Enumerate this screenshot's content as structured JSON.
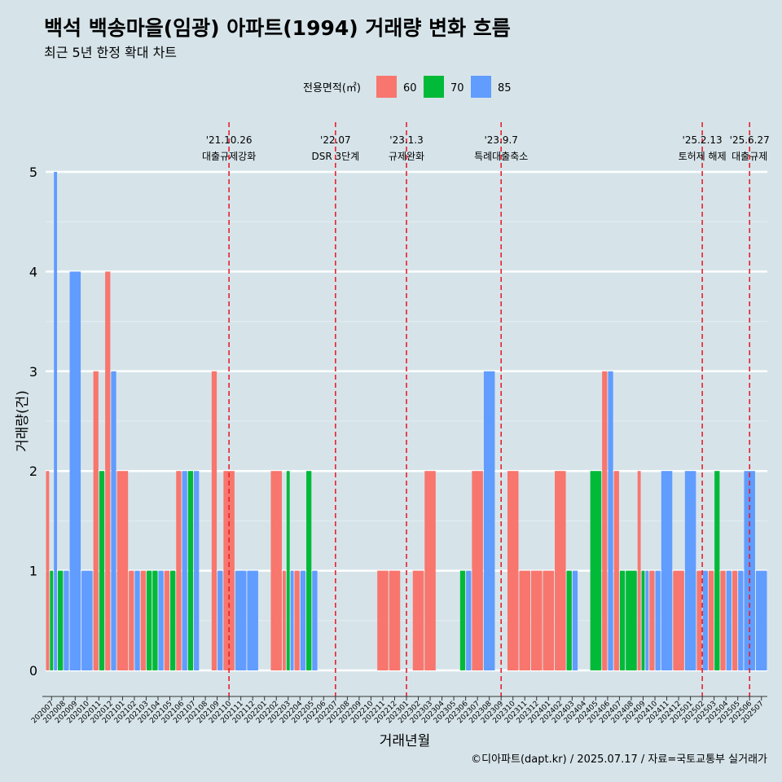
{
  "chart_data": {
    "type": "bar",
    "title": "백석 백송마을(임광) 아파트(1994) 거래량 변화 흐름",
    "subtitle": "최근 5년 한정 확대 차트",
    "xlabel": "거래년월",
    "ylabel": "거래량(건)",
    "ylim": [
      0,
      5
    ],
    "yticks": [
      0,
      1,
      2,
      3,
      4,
      5
    ],
    "grid": true,
    "legend": {
      "title": "전용면적(㎡)",
      "position": "top"
    },
    "categories": [
      "202007",
      "202008",
      "202009",
      "202010",
      "202011",
      "202012",
      "202101",
      "202102",
      "202103",
      "202104",
      "202105",
      "202106",
      "202107",
      "202108",
      "202109",
      "202110",
      "202111",
      "202112",
      "202201",
      "202202",
      "202203",
      "202204",
      "202205",
      "202206",
      "202207",
      "202208",
      "202209",
      "202210",
      "202211",
      "202212",
      "202301",
      "202302",
      "202303",
      "202304",
      "202305",
      "202306",
      "202307",
      "202308",
      "202309",
      "202310",
      "202311",
      "202312",
      "202401",
      "202402",
      "202403",
      "202404",
      "202405",
      "202406",
      "202407",
      "202408",
      "202409",
      "202410",
      "202411",
      "202412",
      "202501",
      "202502",
      "202503",
      "202504",
      "202505",
      "202506",
      "202507"
    ],
    "series": [
      {
        "name": "60",
        "color": "#F8766D",
        "values": [
          2,
          0,
          0,
          0,
          3,
          4,
          2,
          1,
          1,
          0,
          1,
          2,
          0,
          0,
          3,
          2,
          0,
          0,
          0,
          2,
          1,
          1,
          0,
          0,
          0,
          0,
          0,
          0,
          1,
          1,
          0,
          1,
          2,
          0,
          0,
          0,
          2,
          0,
          0,
          2,
          1,
          1,
          1,
          2,
          0,
          0,
          0,
          3,
          2,
          0,
          2,
          1,
          0,
          1,
          0,
          1,
          1,
          1,
          1,
          0,
          0
        ]
      },
      {
        "name": "70",
        "color": "#00BA38",
        "values": [
          1,
          1,
          0,
          0,
          2,
          0,
          0,
          0,
          1,
          1,
          1,
          0,
          2,
          0,
          0,
          0,
          0,
          0,
          0,
          0,
          2,
          0,
          2,
          0,
          0,
          0,
          0,
          0,
          0,
          0,
          0,
          0,
          0,
          0,
          0,
          1,
          0,
          0,
          0,
          0,
          0,
          0,
          0,
          0,
          1,
          0,
          2,
          0,
          1,
          1,
          1,
          0,
          0,
          0,
          0,
          0,
          2,
          0,
          0,
          0,
          0
        ]
      },
      {
        "name": "85",
        "color": "#619CFF",
        "values": [
          5,
          1,
          4,
          1,
          0,
          3,
          0,
          1,
          0,
          1,
          0,
          2,
          2,
          0,
          1,
          0,
          1,
          1,
          0,
          0,
          1,
          1,
          1,
          0,
          0,
          0,
          0,
          0,
          0,
          0,
          0,
          0,
          0,
          0,
          0,
          1,
          0,
          3,
          0,
          0,
          0,
          0,
          0,
          0,
          1,
          0,
          0,
          3,
          0,
          0,
          1,
          1,
          2,
          0,
          2,
          1,
          0,
          1,
          1,
          2,
          1
        ]
      }
    ],
    "events": [
      {
        "date": "'21.10.26",
        "label": "대출규제강화",
        "month": "202110"
      },
      {
        "date": "'22.07",
        "label": "DSR 3단계",
        "month": "202207"
      },
      {
        "date": "'23.1.3",
        "label": "규제완화",
        "month": "202301"
      },
      {
        "date": "'23.9.7",
        "label": "특례대출축소",
        "month": "202309"
      },
      {
        "date": "'25.2.13",
        "label": "토허제 해제",
        "month": "202502"
      },
      {
        "date": "'25.6.27",
        "label": "대출규제",
        "month": "202506"
      }
    ],
    "event_color": "#e8202a"
  },
  "caption": "©디아파트(dapt.kr) / 2025.07.17 / 자료=국토교통부 실거래가"
}
